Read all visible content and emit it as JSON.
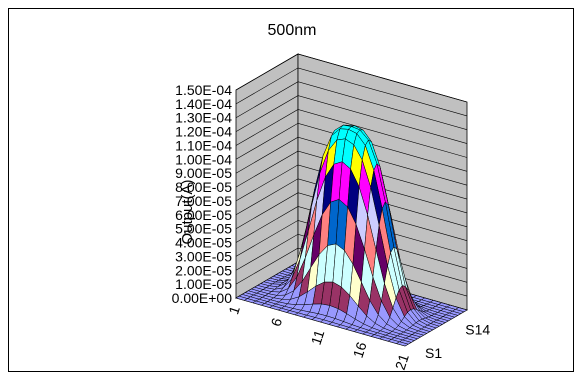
{
  "chart_data": {
    "type": "surface3d",
    "title": "500nm",
    "ylabel": "Output(A)",
    "xlabel": "",
    "zlim": [
      0,
      0.00015
    ],
    "z_ticks": [
      "1.50E-04",
      "1.40E-04",
      "1.30E-04",
      "1.20E-04",
      "1.10E-04",
      "1.00E-04",
      "9.00E-05",
      "8.00E-05",
      "7.00E-05",
      "6.00E-05",
      "5.00E-05",
      "4.00E-05",
      "3.00E-05",
      "2.00E-05",
      "1.00E-05",
      "0.00E+00"
    ],
    "x_ticks": [
      "1",
      "6",
      "11",
      "16",
      "21"
    ],
    "series_ticks": [
      "S1",
      "S14"
    ],
    "grid_size": 21,
    "peak_value": 0.000128,
    "peak_center": 11,
    "grid": true,
    "colors": {
      "wall": "#c0c0c0",
      "floor": "#808080",
      "base": "#9999ff",
      "bands": [
        "#9999ff",
        "#993366",
        "#ffffcc",
        "#ccffff",
        "#660066",
        "#ff8080",
        "#0066cc",
        "#ccccff",
        "#000080",
        "#ff00ff",
        "#ffff00",
        "#00ffff"
      ]
    }
  }
}
